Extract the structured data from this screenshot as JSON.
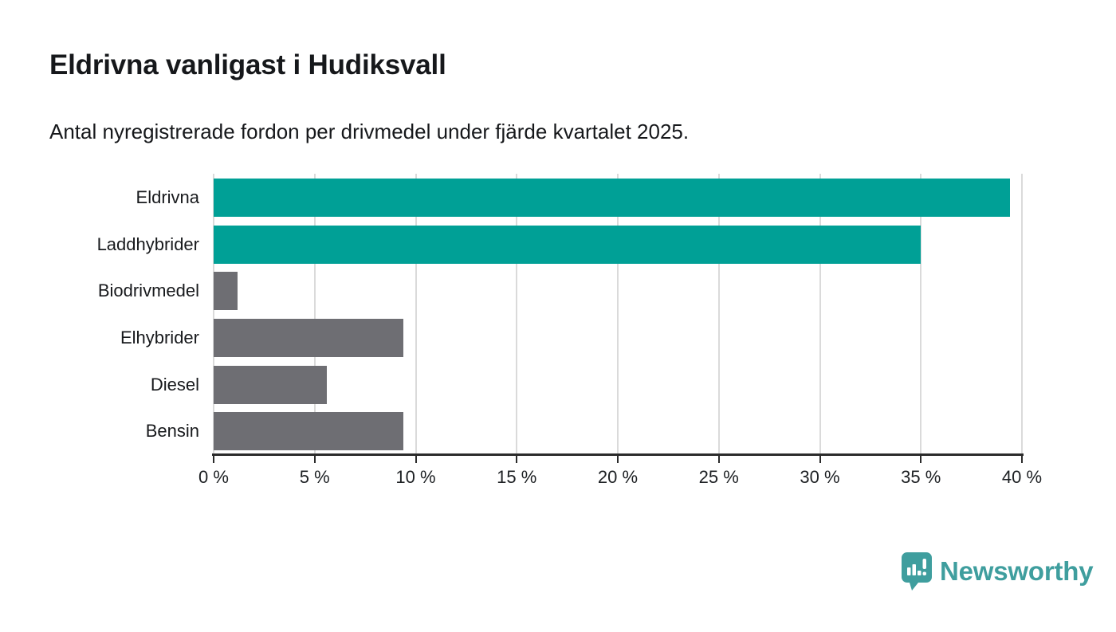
{
  "header": {
    "title": "Eldrivna vanligast i Hudiksvall",
    "subtitle": "Antal nyregistrerade fordon per drivmedel under fjärde kvartalet 2025."
  },
  "chart_data": {
    "type": "bar",
    "orientation": "horizontal",
    "title": "Eldrivna vanligast i Hudiksvall",
    "subtitle": "Antal nyregistrerade fordon per drivmedel under fjärde kvartalet 2025.",
    "categories": [
      "Eldrivna",
      "Laddhybrider",
      "Biodrivmedel",
      "Elhybrider",
      "Diesel",
      "Bensin"
    ],
    "values": [
      39.4,
      35.0,
      1.2,
      9.4,
      5.6,
      9.4
    ],
    "unit": "%",
    "bar_colors": [
      "#00a096",
      "#00a096",
      "#6e6e73",
      "#6e6e73",
      "#6e6e73",
      "#6e6e73"
    ],
    "highlight_color": "#00a096",
    "default_color": "#6e6e73",
    "xlim": [
      0,
      40
    ],
    "x_tick_step": 5,
    "x_ticks": [
      0,
      5,
      10,
      15,
      20,
      25,
      30,
      35,
      40
    ],
    "x_tick_labels": [
      "0 %",
      "5 %",
      "10 %",
      "15 %",
      "20 %",
      "25 %",
      "30 %",
      "35 %",
      "40 %"
    ],
    "grid": true,
    "gridline_color": "#dadada",
    "axis_color": "#2b2b2b",
    "legend": "none"
  },
  "footer": {
    "brand_label": "Newsworthy",
    "logo_icon": "newsworthy-badge-barchart-icon",
    "brand_color": "#3f9e9e"
  }
}
